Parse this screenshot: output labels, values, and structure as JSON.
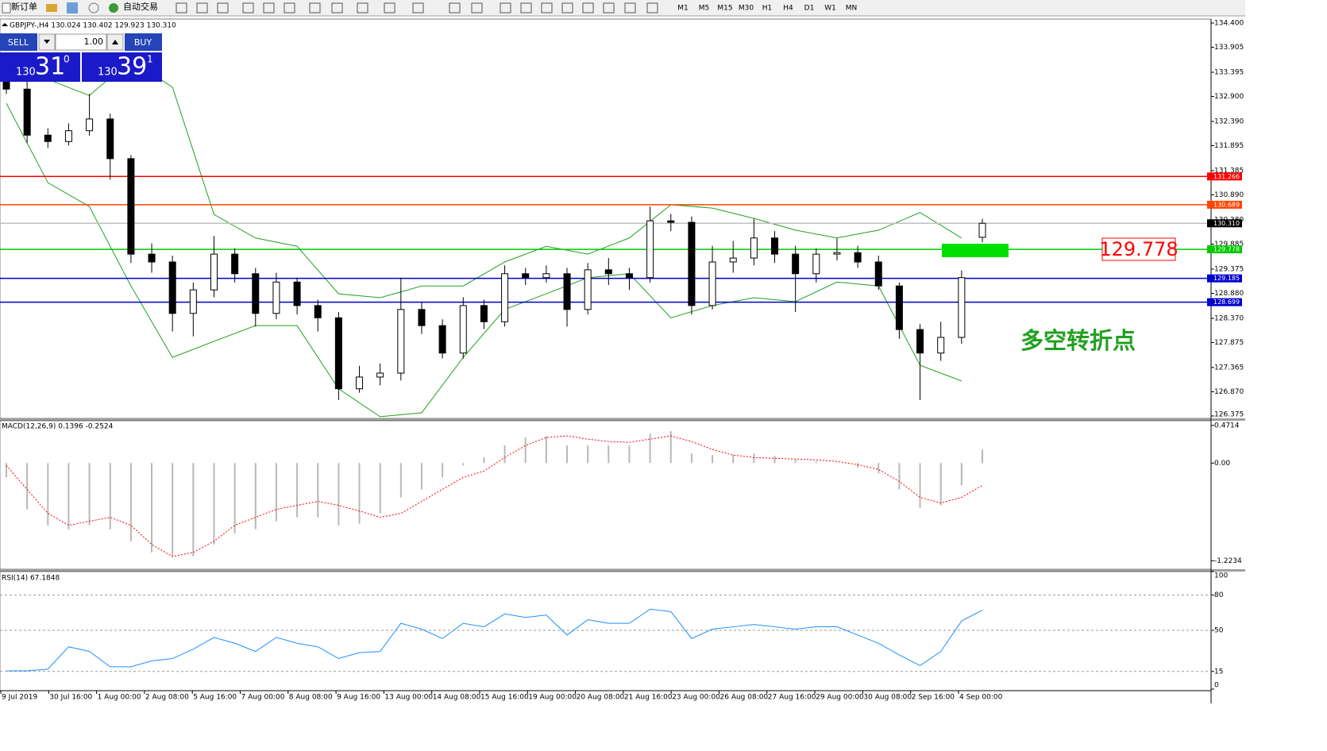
{
  "toolbar": {
    "new_order": "新订单",
    "auto_trading": "自动交易",
    "timeframes": [
      "M1",
      "M5",
      "M15",
      "M30",
      "H1",
      "H4",
      "D1",
      "W1",
      "MN"
    ]
  },
  "trade_panel": {
    "sell": "SELL",
    "buy": "BUY",
    "lots": "1.00",
    "bid": {
      "big": "130",
      "main": "31",
      "small": "0"
    },
    "ask": {
      "big": "130",
      "main": "39",
      "small": "1"
    }
  },
  "main": {
    "header": "GBPJPY-,H4  130.024 130.402 129.923 130.310",
    "ylim": [
      126.326,
      134.481
    ],
    "yticks": [
      {
        "value": 134.4,
        "label": "134.400"
      },
      133.905,
      133.395,
      {
        "value": 132.9,
        "label": "132.900"
      },
      {
        "value": 132.39,
        "label": "132.390"
      },
      131.895,
      131.385,
      {
        "value": 130.89,
        "label": "130.890"
      },
      {
        "value": 130.38,
        "label": "130.380"
      },
      129.885,
      129.375,
      {
        "value": 128.88,
        "label": "128.880"
      },
      {
        "value": 128.37,
        "label": "128.370"
      },
      127.875,
      127.365,
      {
        "value": 126.87,
        "label": "126.870"
      },
      126.375
    ],
    "candles": {
      "open": [
        133.2,
        133.05,
        132.11,
        131.98,
        132.2,
        132.44,
        131.63,
        129.68,
        129.52,
        128.47,
        128.95,
        129.68,
        129.28,
        128.47,
        129.11,
        128.63,
        128.38,
        126.93,
        127.17,
        127.25,
        128.55,
        128.22,
        127.66,
        128.63,
        128.3,
        129.28,
        129.2,
        129.28,
        128.55,
        129.36,
        129.28,
        129.2,
        130.36,
        130.33,
        128.63,
        129.52,
        129.6,
        130.01,
        129.68,
        129.28,
        129.68,
        129.71,
        129.52,
        129.03,
        128.14,
        127.66,
        127.98,
        130.024
      ],
      "high": [
        133.35,
        133.25,
        132.25,
        132.35,
        132.95,
        132.55,
        131.7,
        129.9,
        129.65,
        129.1,
        130.05,
        129.8,
        129.4,
        129.3,
        129.2,
        128.75,
        128.5,
        127.4,
        127.45,
        129.2,
        128.7,
        128.35,
        128.8,
        128.75,
        129.45,
        129.4,
        129.45,
        129.4,
        129.5,
        129.6,
        129.4,
        130.65,
        130.5,
        130.45,
        129.85,
        129.95,
        130.4,
        130.15,
        129.85,
        129.8,
        130.0,
        129.85,
        129.65,
        129.1,
        128.25,
        128.3,
        129.35,
        130.402
      ],
      "low": [
        132.95,
        131.95,
        131.85,
        131.9,
        132.1,
        131.2,
        129.5,
        129.3,
        128.1,
        128.0,
        128.8,
        129.1,
        128.2,
        128.35,
        128.45,
        128.1,
        126.7,
        126.85,
        127.0,
        127.1,
        128.05,
        127.55,
        127.55,
        128.15,
        128.2,
        129.05,
        129.1,
        128.2,
        128.45,
        129.05,
        128.95,
        129.1,
        130.15,
        128.45,
        128.55,
        129.3,
        129.45,
        129.5,
        128.5,
        129.1,
        129.55,
        129.4,
        128.95,
        127.95,
        126.7,
        127.5,
        127.85,
        129.923
      ],
      "close": [
        133.05,
        132.11,
        131.98,
        132.2,
        132.44,
        131.63,
        129.68,
        129.52,
        128.47,
        128.95,
        129.68,
        129.28,
        128.47,
        129.11,
        128.63,
        128.38,
        126.93,
        127.17,
        127.25,
        128.55,
        128.22,
        127.66,
        128.63,
        128.3,
        129.28,
        129.2,
        129.28,
        128.55,
        129.36,
        129.28,
        129.2,
        130.36,
        130.33,
        128.63,
        129.52,
        129.6,
        130.01,
        129.68,
        129.28,
        129.68,
        129.71,
        129.52,
        129.03,
        128.14,
        127.66,
        127.98,
        129.2,
        130.31
      ]
    },
    "bands": {
      "color": "#22a022",
      "upper": [
        133.41,
        133.25,
        132.92,
        133.65,
        133.09,
        130.49,
        130.01,
        129.84,
        128.87,
        128.79,
        129.03,
        129.03,
        129.52,
        129.84,
        129.68,
        130.01,
        130.69,
        130.62,
        130.41,
        130.17,
        130.01,
        130.17,
        130.53,
        130.01
      ],
      "lower": [
        132.76,
        131.14,
        130.65,
        129.03,
        127.57,
        127.9,
        128.22,
        128.22,
        126.93,
        126.36,
        126.44,
        127.57,
        128.55,
        128.87,
        129.2,
        129.28,
        128.38,
        128.63,
        128.79,
        128.71,
        129.11,
        129.03,
        127.41,
        127.09
      ]
    },
    "levels": [
      {
        "price": 131.266,
        "color": "#ff0000",
        "label_color": "#ff0000"
      },
      {
        "price": 130.689,
        "color": "#ff4500",
        "label_color": "#ff4500"
      },
      {
        "price": {
          "value": 130.31,
          "label": "130.310"
        },
        "color": "#c0c0c0",
        "label_color": "#000000"
      },
      {
        "price": 129.778,
        "color": "#00c800",
        "label_color": "#00c800"
      },
      {
        "price": 129.185,
        "color": "#0000cd",
        "label_color": "#0000cd"
      },
      {
        "price": 128.699,
        "color": "#0000cd",
        "label_color": "#0000cd"
      }
    ]
  },
  "macd": {
    "header": "MACD(12,26,9) 0.1396 -0.2524",
    "ylim": [
      -1.33,
      0.53
    ],
    "yticks": [
      0.4714,
      {
        "value": 0,
        "label": "0.00"
      },
      -1.2234
    ],
    "histogram": [
      -0.18,
      -0.58,
      -0.78,
      -0.83,
      -0.78,
      -0.83,
      -0.98,
      -1.12,
      -1.17,
      -1.17,
      -1.02,
      -0.88,
      -0.83,
      -0.73,
      -0.68,
      -0.68,
      -0.78,
      -0.76,
      -0.63,
      -0.43,
      -0.33,
      -0.18,
      -0.03,
      0.07,
      0.22,
      0.32,
      0.34,
      0.22,
      0.22,
      0.22,
      0.22,
      0.37,
      0.4,
      0.12,
      0.1,
      0.1,
      0.12,
      0.09,
      0.04,
      0.02,
      0.0,
      -0.06,
      -0.13,
      -0.33,
      -0.56,
      -0.53,
      -0.28,
      0.17
    ],
    "signal": [
      -0.03,
      -0.33,
      -0.63,
      -0.78,
      -0.73,
      -0.68,
      -0.78,
      -1.02,
      -1.17,
      -1.12,
      -0.98,
      -0.78,
      -0.68,
      -0.58,
      -0.53,
      -0.48,
      -0.53,
      -0.6,
      -0.68,
      -0.63,
      -0.48,
      -0.33,
      -0.18,
      -0.1,
      0.07,
      0.22,
      0.32,
      0.34,
      0.3,
      0.27,
      0.26,
      0.3,
      0.34,
      0.27,
      0.17,
      0.1,
      0.07,
      0.06,
      0.05,
      0.04,
      0.02,
      -0.02,
      -0.08,
      -0.23,
      -0.43,
      -0.5,
      -0.43,
      -0.28
    ]
  },
  "rsi": {
    "header": "RSI(14) 67.1848",
    "ylim": [
      0,
      100
    ],
    "yticks": [
      100,
      80,
      50,
      15,
      0
    ],
    "levels": [
      80,
      50,
      15
    ],
    "values": [
      15.5,
      15.5,
      17,
      36,
      32,
      19,
      19,
      24,
      26,
      34,
      44,
      39,
      32,
      44,
      39,
      36,
      26,
      31,
      32,
      56,
      51,
      43,
      56,
      53,
      64,
      61,
      63,
      46,
      59,
      56,
      56,
      68,
      66,
      43,
      51,
      53,
      55,
      53,
      51,
      53,
      53,
      46,
      39,
      29,
      20,
      32,
      58,
      67.1848
    ]
  },
  "time_labels": [
    "9 Jul 2019",
    "30 Jul 16:00",
    "1 Aug 00:00",
    "2 Aug 08:00",
    "5 Aug 16:00",
    "7 Aug 00:00",
    "8 Aug 08:00",
    "9 Aug 16:00",
    "13 Aug 00:00",
    "14 Aug 08:00",
    "15 Aug 16:00",
    "19 Aug 00:00",
    "20 Aug 08:00",
    "21 Aug 16:00",
    "23 Aug 00:00",
    "26 Aug 08:00",
    "27 Aug 16:00",
    "29 Aug 00:00",
    "30 Aug 08:00",
    "2 Sep 16:00",
    "4 Sep 00:00"
  ],
  "annotation": {
    "text": "多空转折点"
  }
}
